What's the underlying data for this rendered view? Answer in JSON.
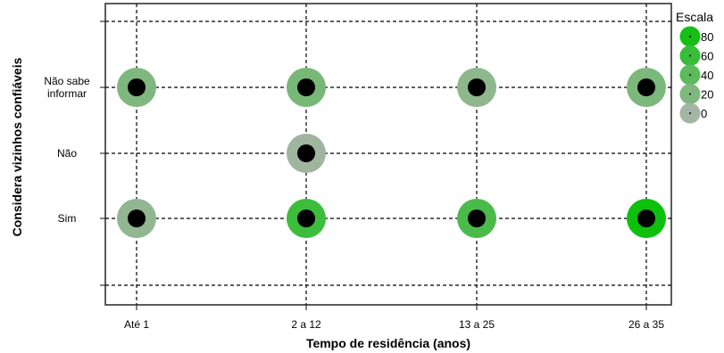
{
  "chart_data": {
    "type": "scatter",
    "title": "",
    "xlabel": "Tempo de residência (anos)",
    "ylabel": "Considera vizinhos confiáveis",
    "x_categories": [
      "Até 1",
      "2 a 12",
      "13 a 25",
      "26 a 35"
    ],
    "y_categories": [
      {
        "label_lines": [
          "Não sabe",
          "informar"
        ],
        "id": "nao-sabe-informar"
      },
      {
        "label_lines": [
          "Não"
        ],
        "id": "nao"
      },
      {
        "label_lines": [
          "Sim"
        ],
        "id": "sim"
      }
    ],
    "points": [
      {
        "x": "Até 1",
        "y": "nao-sabe-informar",
        "value": 20
      },
      {
        "x": "2 a 12",
        "y": "nao-sabe-informar",
        "value": 25
      },
      {
        "x": "13 a 25",
        "y": "nao-sabe-informar",
        "value": 12
      },
      {
        "x": "26 a 35",
        "y": "nao-sabe-informar",
        "value": 22
      },
      {
        "x": "2 a 12",
        "y": "nao",
        "value": 2
      },
      {
        "x": "Até 1",
        "y": "sim",
        "value": 10
      },
      {
        "x": "2 a 12",
        "y": "sim",
        "value": 58
      },
      {
        "x": "13 a 25",
        "y": "sim",
        "value": 50
      },
      {
        "x": "26 a 35",
        "y": "sim",
        "value": 85
      }
    ],
    "legend": {
      "title": "Escala",
      "position": "top-right",
      "entries": [
        {
          "label": "80",
          "value": 80
        },
        {
          "label": "60",
          "value": 60
        },
        {
          "label": "40",
          "value": 40
        },
        {
          "label": "20",
          "value": 20
        },
        {
          "label": "0",
          "value": 0
        }
      ]
    },
    "color_scale": {
      "low": "#a3b5a3",
      "high": "#0cc00c",
      "min": 0,
      "max": 85
    },
    "grid": true
  }
}
